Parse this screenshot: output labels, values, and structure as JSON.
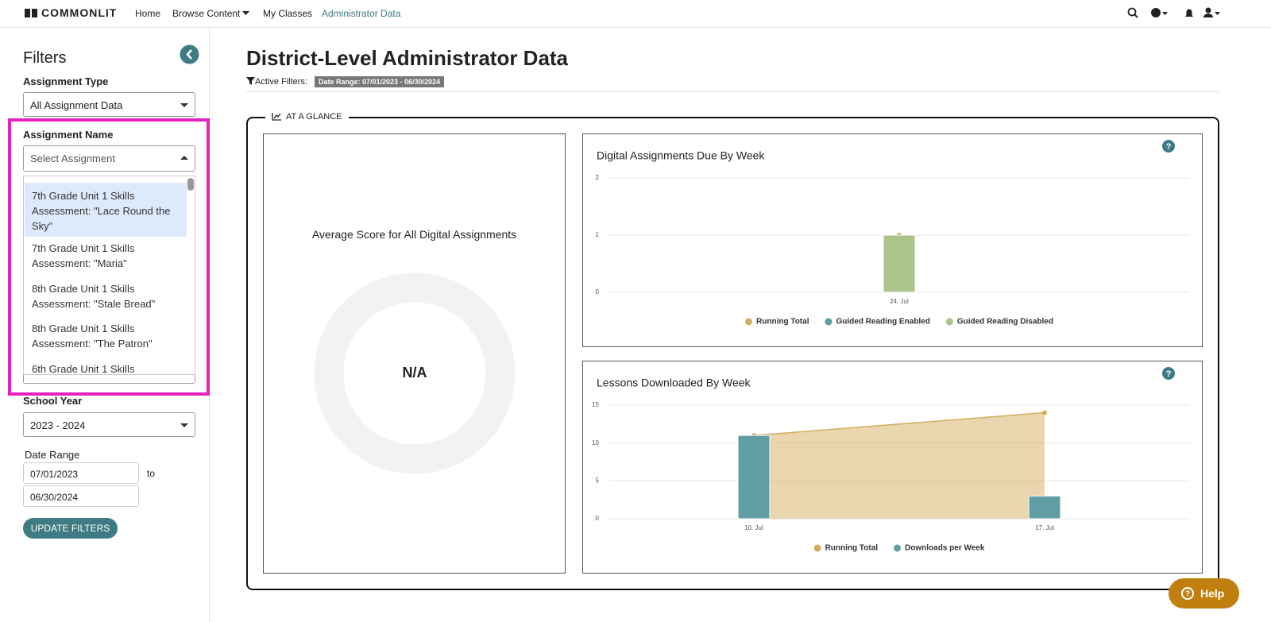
{
  "nav": {
    "brand": "COMMONLIT",
    "links": [
      "Home",
      "Browse Content",
      "My Classes",
      "Administrator Data"
    ]
  },
  "sidebar": {
    "title": "Filters",
    "assignment_type": {
      "label": "Assignment Type",
      "value": "All Assignment Data"
    },
    "assignment_name": {
      "label": "Assignment Name",
      "placeholder": "Select Assignment",
      "options": [
        "7th Grade Unit 1 Skills Assessment: \"Lace Round the Sky\"",
        "7th Grade Unit 1 Skills Assessment: \"Maria\"",
        "8th Grade Unit 1 Skills Assessment: \"Stale Bread\"",
        "8th Grade Unit 1 Skills Assessment: \"The Patron\"",
        "6th Grade Unit 1 Skills"
      ]
    },
    "school_year": {
      "label": "School Year",
      "value": "2023 - 2024"
    },
    "date_range": {
      "label": "Date Range",
      "from": "07/01/2023",
      "to_label": "to",
      "to": "06/30/2024"
    },
    "button": "UPDATE FILTERS"
  },
  "header": {
    "title": "District-Level Administrator Data",
    "active_filters_label": "Active Filters:",
    "filter_tag": "Date Range: 07/01/2023 - 06/30/2024"
  },
  "section": {
    "title": "AT A GLANCE"
  },
  "score_card": {
    "title": "Average Score for All Digital Assignments",
    "value": "N/A"
  },
  "chart_data": [
    {
      "type": "bar",
      "title": "Digital Assignments Due By Week",
      "stacked": true,
      "categories": [
        "24. Jul"
      ],
      "series": [
        {
          "name": "Running Total",
          "type": "line",
          "color": "#d3ad5f",
          "values": [
            1
          ]
        },
        {
          "name": "Guided Reading Enabled",
          "type": "bar",
          "color": "#619ea4",
          "values": [
            0
          ]
        },
        {
          "name": "Guided Reading Disabled",
          "type": "bar",
          "color": "#aac48c",
          "values": [
            1
          ]
        }
      ],
      "ylim": [
        0,
        2
      ],
      "yticks": [
        0,
        1,
        2
      ],
      "grid": true
    },
    {
      "type": "bar",
      "title": "Lessons Downloaded By Week",
      "stacked": false,
      "categories": [
        "10. Jul",
        "17. Jul"
      ],
      "series": [
        {
          "name": "Running Total",
          "type": "area",
          "color": "#d3ad5f",
          "values": [
            11,
            14
          ]
        },
        {
          "name": "Downloads per Week",
          "type": "bar",
          "color": "#619ea4",
          "values": [
            11,
            3
          ]
        }
      ],
      "ylim": [
        0,
        15
      ],
      "yticks": [
        0,
        5,
        10,
        15
      ],
      "grid": true
    }
  ],
  "help": "Help"
}
